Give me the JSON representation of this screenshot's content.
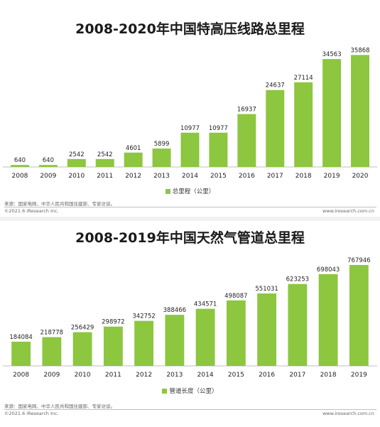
{
  "chart_data": [
    {
      "type": "bar",
      "title": "2008-2020年中国特高压线路总里程",
      "categories": [
        "2008",
        "2009",
        "2010",
        "2011",
        "2012",
        "2013",
        "2014",
        "2015",
        "2016",
        "2017",
        "2018",
        "2019",
        "2020"
      ],
      "series": [
        {
          "name": "总里程（公里）",
          "values": [
            640,
            640,
            2542,
            2542,
            4601,
            5899,
            10977,
            10977,
            16937,
            24637,
            27114,
            34563,
            35868
          ]
        }
      ],
      "color": "#8dc63f",
      "legend_position": "bottom",
      "ylim": [
        0,
        38000
      ],
      "grid": false
    },
    {
      "type": "bar",
      "title": "2008-2019年中国天然气管道总里程",
      "categories": [
        "2008",
        "2009",
        "2010",
        "2011",
        "2012",
        "2013",
        "2014",
        "2015",
        "2016",
        "2017",
        "2018",
        "2019"
      ],
      "series": [
        {
          "name": "管道长度（公里）",
          "values": [
            184084,
            218778,
            256429,
            298972,
            342752,
            388466,
            434571,
            498087,
            551031,
            623253,
            698043,
            767946
          ]
        }
      ],
      "color": "#8dc63f",
      "legend_position": "bottom",
      "ylim": [
        0,
        800000
      ],
      "grid": false
    }
  ],
  "footers": [
    {
      "source": "来源：国家电网、中华人民共和国住建部、专家访谈。",
      "copyright": "©2021.6 iResearch Inc.",
      "url": "www.iresearch.com.cn"
    },
    {
      "source": "来源：国家电网、中华人民共和国住建部、专家访谈。",
      "copyright": "©2021.6 iResearch Inc.",
      "url": "www.iresearch.com.cn"
    }
  ]
}
